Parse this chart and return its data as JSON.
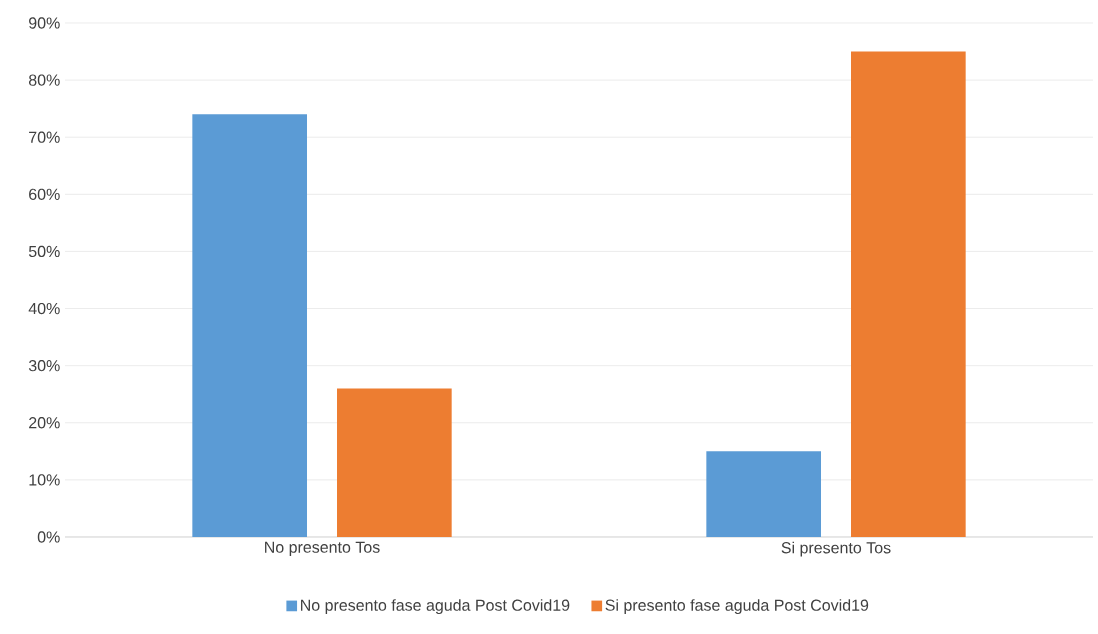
{
  "chart_data": {
    "type": "bar",
    "categories": [
      "No presento Tos",
      "Si presento Tos"
    ],
    "series": [
      {
        "name": "No presento fase aguda Post  Covid19",
        "color": "#5b9bd5",
        "values": [
          74,
          15
        ]
      },
      {
        "name": "Si presento fase aguda Post  Covid19",
        "color": "#ed7d31",
        "values": [
          26,
          85
        ]
      }
    ],
    "ylim": [
      0,
      90
    ],
    "yticks": [
      {
        "value": 0,
        "label": "0%"
      },
      {
        "value": 10,
        "label": "10%"
      },
      {
        "value": 20,
        "label": "20%"
      },
      {
        "value": 30,
        "label": "30%"
      },
      {
        "value": 40,
        "label": "40%"
      },
      {
        "value": 50,
        "label": "50%"
      },
      {
        "value": 60,
        "label": "60%"
      },
      {
        "value": 70,
        "label": "70%"
      },
      {
        "value": 80,
        "label": "80%"
      },
      {
        "value": 90,
        "label": "90%"
      }
    ],
    "grid": "y",
    "legend": "bottom"
  }
}
